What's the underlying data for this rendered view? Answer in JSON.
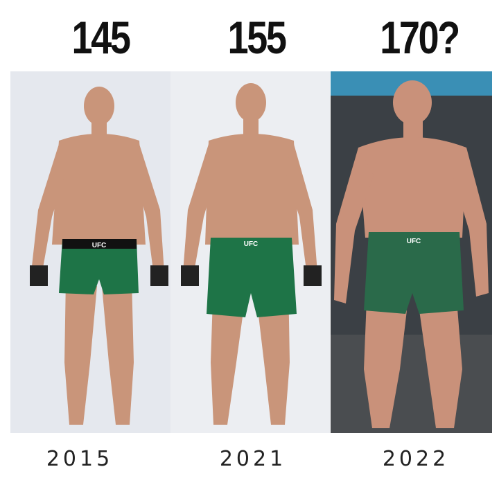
{
  "weights": [
    "145",
    "155",
    "170?"
  ],
  "years": [
    "2015",
    "2021",
    "2022"
  ],
  "shorts_logo": "UFC",
  "colors": {
    "skin": "#c9957a",
    "shorts": "#1e7447",
    "background_1": "#e5e8ee",
    "background_2": "#eceef2",
    "background_3": "#3b4045"
  }
}
